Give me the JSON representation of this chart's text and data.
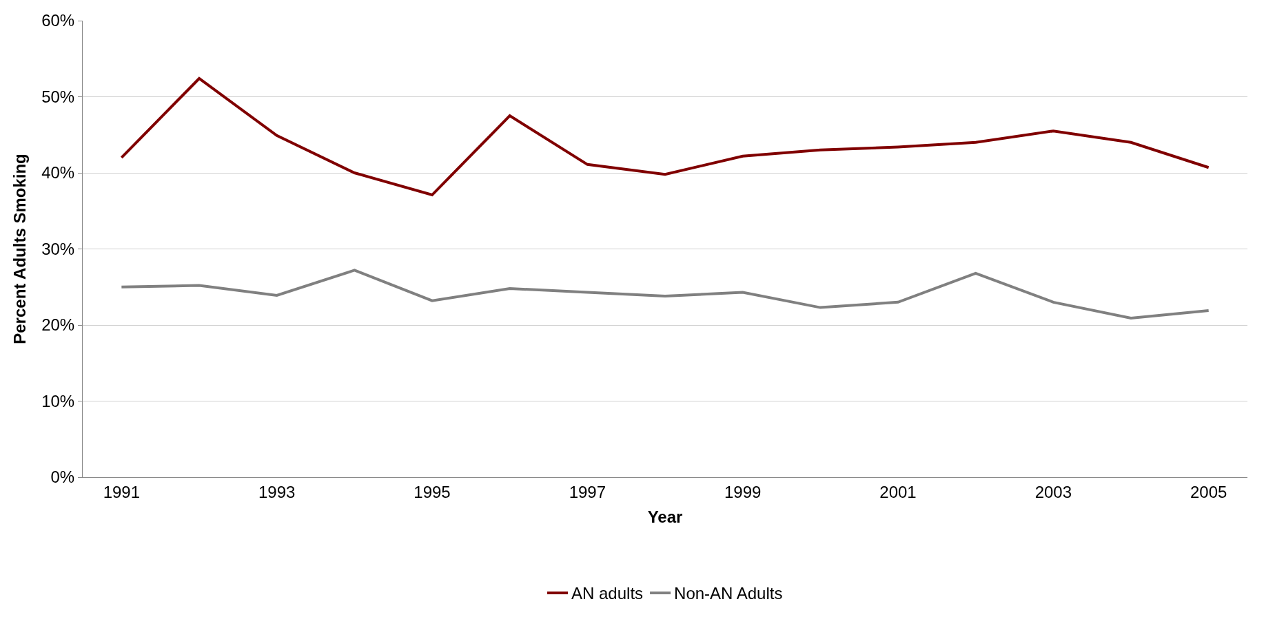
{
  "chart_data": {
    "type": "line",
    "xlabel": "Year",
    "ylabel": "Percent Adults Smoking",
    "categories": [
      "1991",
      null,
      "1993",
      null,
      "1995",
      null,
      "1997",
      null,
      "1999",
      null,
      "2001",
      null,
      "2003",
      null,
      "2005"
    ],
    "series": [
      {
        "name": "AN adults",
        "color": "#800000",
        "values": [
          42.0,
          52.4,
          44.9,
          40.0,
          37.1,
          47.5,
          41.1,
          39.8,
          42.2,
          43.0,
          43.4,
          44.0,
          45.5,
          44.0,
          40.7
        ]
      },
      {
        "name": "Non-AN Adults",
        "color": "#808080",
        "values": [
          25.0,
          25.2,
          23.9,
          27.2,
          23.2,
          24.8,
          24.3,
          23.8,
          24.3,
          22.3,
          23.0,
          26.8,
          23.0,
          20.9,
          21.9
        ]
      }
    ],
    "ylim": [
      0,
      60
    ],
    "yticks": [
      {
        "value": 0,
        "label": "0%"
      },
      {
        "value": 10,
        "label": "10%"
      },
      {
        "value": 20,
        "label": "20%"
      },
      {
        "value": 30,
        "label": "30%"
      },
      {
        "value": 40,
        "label": "40%"
      },
      {
        "value": 50,
        "label": "50%"
      },
      {
        "value": 60,
        "label": "60%"
      }
    ],
    "grid": "y",
    "legend": "bottom",
    "marker": "none",
    "line_style": "solid"
  }
}
